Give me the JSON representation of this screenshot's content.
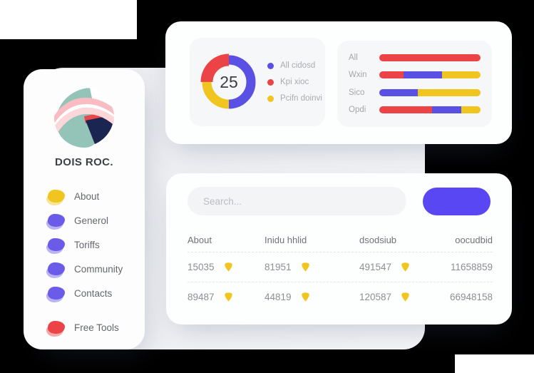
{
  "colors": {
    "purple": "#5A51E4",
    "red": "#EC4347",
    "yellow": "#F1C51F",
    "blob_purple": "#6A5BE9",
    "button": "#5847F2"
  },
  "sidebar": {
    "title": "DOIS ROC.",
    "items": [
      {
        "label": "About",
        "color": "#F1C51F",
        "gap": false
      },
      {
        "label": "Generol",
        "color": "#6A5BE9",
        "gap": false
      },
      {
        "label": "Toriffs",
        "color": "#6A5BE9",
        "gap": false
      },
      {
        "label": "Community",
        "color": "#6A5BE9",
        "gap": false
      },
      {
        "label": "Contacts",
        "color": "#6A5BE9",
        "gap": false
      },
      {
        "label": "Free Tools",
        "color": "#EC4347",
        "gap": true
      }
    ]
  },
  "chart_data": [
    {
      "type": "pie",
      "subtype": "donut",
      "center_label": "25",
      "legend_position": "right",
      "segments": [
        {
          "label": "All cidosd",
          "value": 50,
          "color": "#5A51E4",
          "start_deg": 0,
          "highlight": false
        },
        {
          "label": "Kpi xioc",
          "value": 25,
          "color": "#EC4347",
          "start_deg": 270,
          "highlight": true
        },
        {
          "label": "Pcifn doinvi",
          "value": 25,
          "color": "#F1C51F",
          "start_deg": 180,
          "highlight": false
        }
      ]
    },
    {
      "type": "bar",
      "orientation": "horizontal",
      "stacked": true,
      "unit": "percent",
      "categories": [
        "All",
        "Wxin",
        "Sico",
        "Opdi"
      ],
      "series": [
        {
          "name": "red",
          "color": "#EC4347",
          "values": [
            100,
            24,
            0,
            52
          ]
        },
        {
          "name": "purple",
          "color": "#5A51E4",
          "values": [
            0,
            38,
            38,
            29
          ]
        },
        {
          "name": "yellow",
          "color": "#F1C51F",
          "values": [
            0,
            38,
            62,
            19
          ]
        }
      ]
    }
  ],
  "search": {
    "placeholder": "Search..."
  },
  "table": {
    "headers": [
      "About",
      "Inidu hhlid",
      "dsodsiub",
      "oocudbid"
    ],
    "rows": [
      [
        "15035",
        "81951",
        "491547",
        "11658859"
      ],
      [
        "89487",
        "44819",
        "120587",
        "66948158"
      ]
    ],
    "icon": "shield-icon",
    "icon_color": "#F1C51F"
  }
}
